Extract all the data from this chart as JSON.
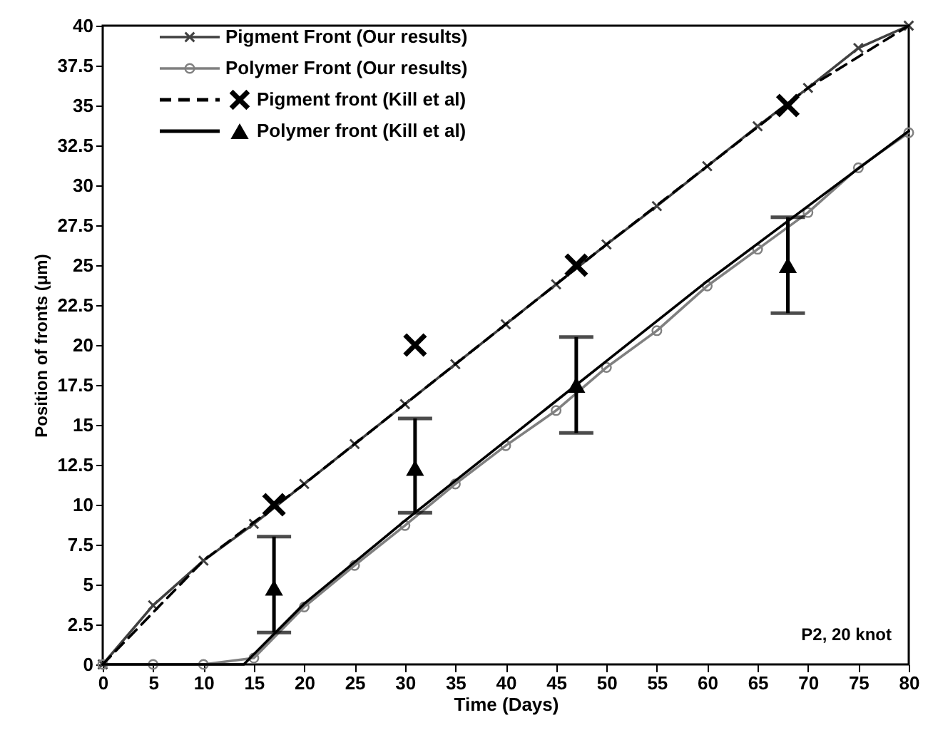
{
  "chart_data": {
    "type": "line",
    "xlabel": "Time (Days)",
    "ylabel": "Position of fronts (μm)",
    "xlim": [
      0,
      80
    ],
    "xticks": [
      0,
      5,
      10,
      15,
      20,
      25,
      30,
      35,
      40,
      45,
      50,
      55,
      60,
      65,
      70,
      75,
      80
    ],
    "ylim": [
      0,
      40
    ],
    "yticks": [
      0,
      2.5,
      5,
      7.5,
      10,
      12.5,
      15,
      17.5,
      20,
      22.5,
      25,
      27.5,
      30,
      32.5,
      35,
      37.5,
      40
    ],
    "legend": "top left",
    "annotations": [
      "P2, 20 knot"
    ],
    "series": [
      {
        "name": "Pigment Front (Our results)",
        "color": "#404040",
        "marker": "cross",
        "line_style": "solid",
        "x": [
          0,
          5,
          10,
          15,
          20,
          25,
          30,
          35,
          40,
          45,
          50,
          55,
          60,
          65,
          70,
          75,
          80
        ],
        "values": [
          0,
          3.7,
          6.5,
          8.8,
          11.3,
          13.8,
          16.3,
          18.8,
          21.3,
          23.8,
          26.3,
          28.7,
          31.2,
          33.7,
          36.1,
          38.6,
          40
        ]
      },
      {
        "name": "Polymer Front (Our results)",
        "color": "#808080",
        "marker": "circle",
        "line_style": "solid",
        "x": [
          0,
          5,
          10,
          15,
          20,
          25,
          30,
          35,
          40,
          45,
          50,
          55,
          60,
          65,
          70,
          75,
          80
        ],
        "values": [
          0,
          0,
          0,
          0.4,
          3.6,
          6.2,
          8.7,
          11.3,
          13.7,
          15.9,
          18.6,
          20.9,
          23.7,
          26,
          28.3,
          31.1,
          33.3
        ]
      },
      {
        "name": "Pigment front (Kill et al)",
        "type": "scatter",
        "color": "#000000",
        "marker": "cross",
        "x": [
          17,
          31,
          47,
          68
        ],
        "values": [
          10,
          20,
          25,
          35
        ]
      },
      {
        "color": "#000000",
        "marker": "none",
        "line_style": "dashed",
        "x": [
          0,
          10,
          20,
          30,
          40,
          50,
          60,
          70,
          80
        ],
        "values": [
          0,
          6.5,
          11.3,
          16.3,
          21.3,
          26.3,
          31.2,
          36.1,
          40
        ]
      },
      {
        "name": "Polymer front (Kill et al)",
        "type": "scatter",
        "color": "#000000",
        "marker": "triangle",
        "x": [
          17,
          31,
          47,
          68
        ],
        "values": [
          4.8,
          12.3,
          17.5,
          25
        ],
        "errors": [
          [
            2,
            8
          ],
          [
            9.5,
            15.4
          ],
          [
            14.5,
            20.5
          ],
          [
            22,
            28
          ]
        ]
      },
      {
        "color": "#000000",
        "marker": "none",
        "line_style": "solid",
        "x": [
          0,
          14,
          20,
          30,
          40,
          50,
          60,
          70,
          80
        ],
        "values": [
          0,
          0,
          3.8,
          9,
          14,
          19,
          24,
          28.7,
          33.4
        ]
      }
    ]
  }
}
